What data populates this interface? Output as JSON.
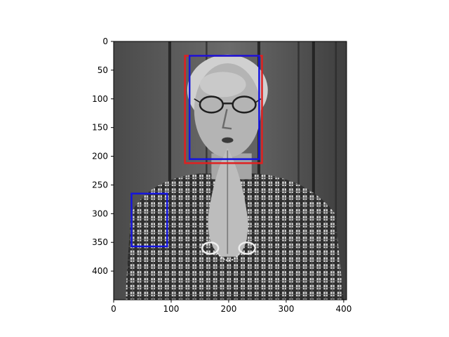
{
  "chart_data": {
    "type": "image",
    "title": "",
    "xlabel": "",
    "ylabel": "",
    "image_size": [
      405,
      450
    ],
    "xlim": [
      0,
      405
    ],
    "ylim": [
      450,
      0
    ],
    "y_inverted": true,
    "xticks": [
      0,
      100,
      200,
      300,
      400
    ],
    "yticks": [
      0,
      50,
      100,
      150,
      200,
      250,
      300,
      350,
      400
    ],
    "image_description": "grayscale photo of older man with glasses, hands pressed together at chin, handcuffed wrists, plaid shirt, wooden background",
    "boxes": [
      {
        "label": "red-box",
        "color": "#e02020",
        "x0": 124,
        "y0": 25,
        "x1": 258,
        "y1": 212
      },
      {
        "label": "blue-box-face",
        "color": "#1515dd",
        "x0": 132,
        "y0": 25,
        "x1": 253,
        "y1": 205
      },
      {
        "label": "blue-box-chest",
        "color": "#1515dd",
        "x0": 31,
        "y0": 265,
        "x1": 93,
        "y1": 357
      }
    ]
  }
}
